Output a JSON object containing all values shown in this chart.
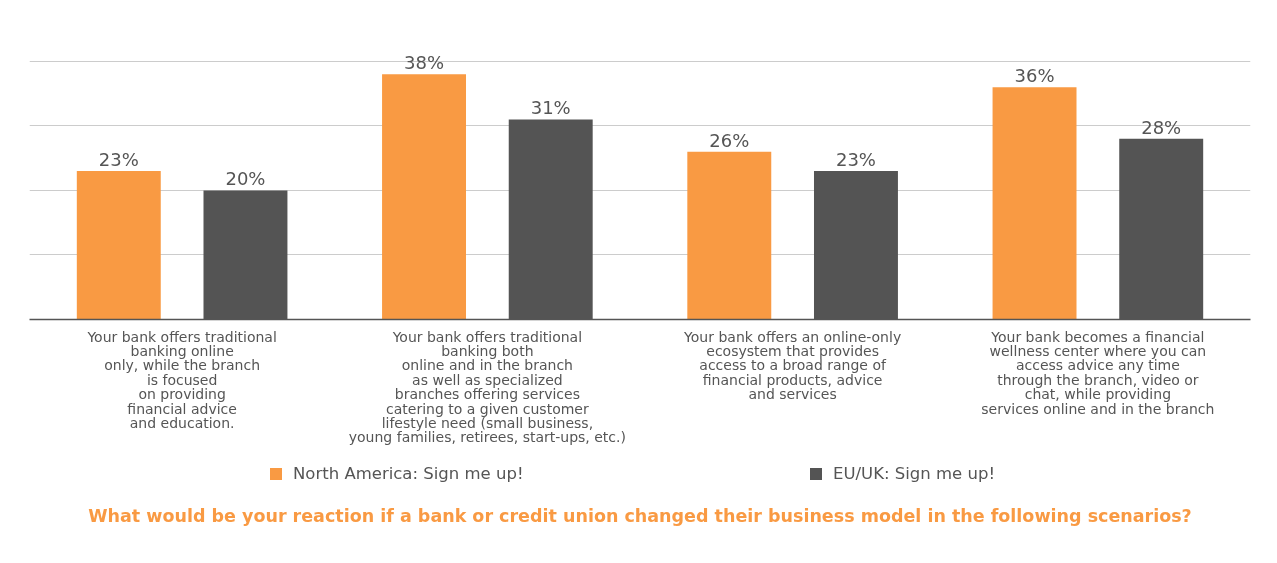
{
  "chart_data": {
    "type": "bar",
    "title": "What would be your reaction if a bank or credit union changed their business model in the following scenarios?",
    "categories": [
      "Your bank offers traditional\nbanking online\nonly, while the branch\nis focused\non providing\nfinancial advice\nand education.",
      "Your bank offers traditional\nbanking both\nonline and in the branch\nas well as specialized\nbranches offering services\ncatering to a given customer\nlifestyle need (small business,\nyoung families, retirees, start-ups, etc.)",
      "Your bank offers an online-only\necosystem that provides\naccess to a broad range of\nfinancial products, advice\nand services",
      "Your bank becomes a financial\nwellness center where you can\naccess advice any time\nthrough the branch, video or\nchat, while providing\nservices online and in the branch"
    ],
    "series": [
      {
        "name": "North America: Sign me up!",
        "color": "#f99a43",
        "values": [
          23,
          38,
          26,
          36
        ],
        "value_labels": [
          "23%",
          "38%",
          "26%",
          "36%"
        ]
      },
      {
        "name": "EU/UK: Sign me up!",
        "color": "#545454",
        "values": [
          20,
          31,
          23,
          28
        ],
        "value_labels": [
          "20%",
          "31%",
          "23%",
          "28%"
        ]
      }
    ],
    "tick_labels": "x",
    "grid": "y",
    "legend": "bottom"
  }
}
